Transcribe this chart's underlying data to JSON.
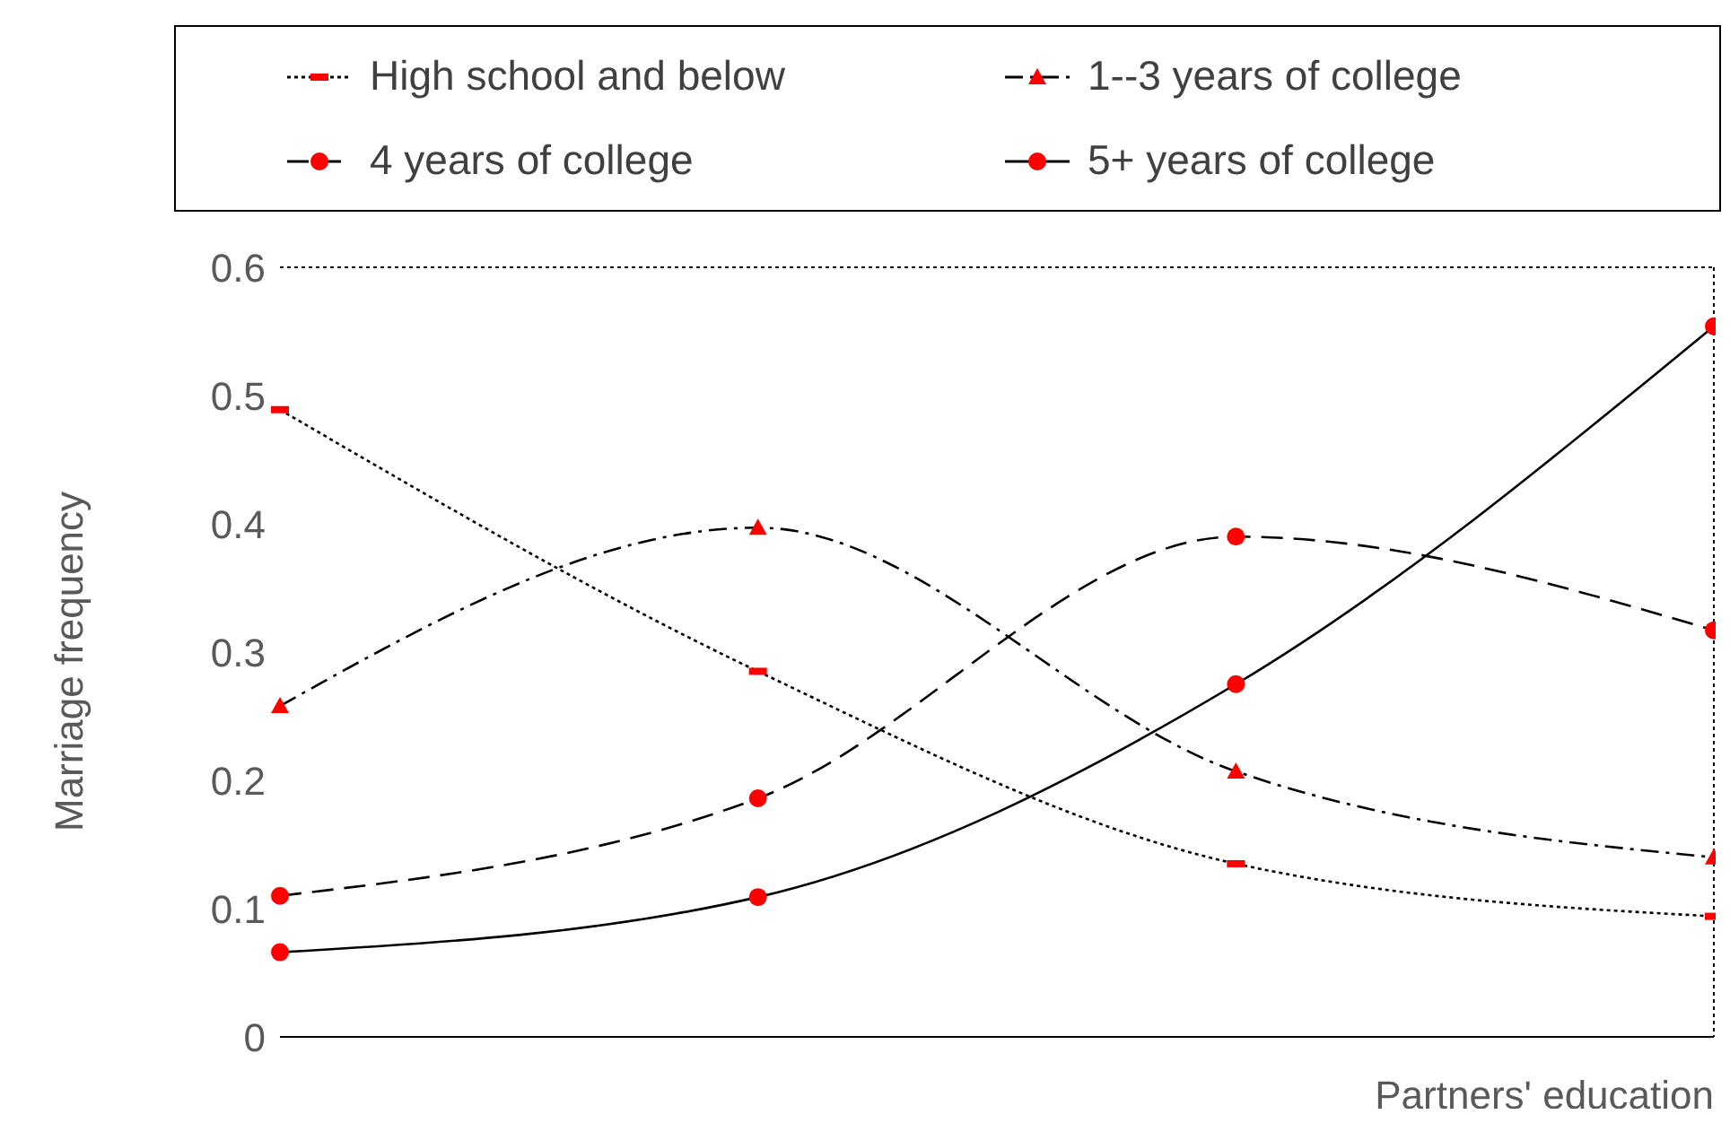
{
  "chart_data": {
    "type": "line",
    "xlabel": "Partners' education",
    "ylabel": "Marriage frequency",
    "categories": [
      null,
      null,
      null,
      null
    ],
    "ylim": [
      0,
      0.6
    ],
    "yticks": [
      0,
      0.1,
      0.2,
      0.3,
      0.4,
      0.5,
      0.6
    ],
    "grid": false,
    "legend": "top",
    "series": [
      {
        "name": "High school and below",
        "color": "#000000",
        "line_style": "dotted",
        "marker": "square",
        "values": [
          0.489,
          0.285,
          0.135,
          0.094
        ]
      },
      {
        "name": "1--3 years of college",
        "color": "#000000",
        "line_style": "dashdot",
        "marker": "triangle",
        "values": [
          0.258,
          0.397,
          0.207,
          0.14
        ]
      },
      {
        "name": "4 years of college",
        "color": "#000000",
        "line_style": "dashed",
        "marker": "circle",
        "values": [
          0.11,
          0.186,
          0.39,
          0.317
        ]
      },
      {
        "name": "5+ years of college",
        "color": "#000000",
        "line_style": "solid",
        "marker": "circle",
        "values": [
          0.066,
          0.109,
          0.275,
          0.554
        ]
      }
    ]
  }
}
